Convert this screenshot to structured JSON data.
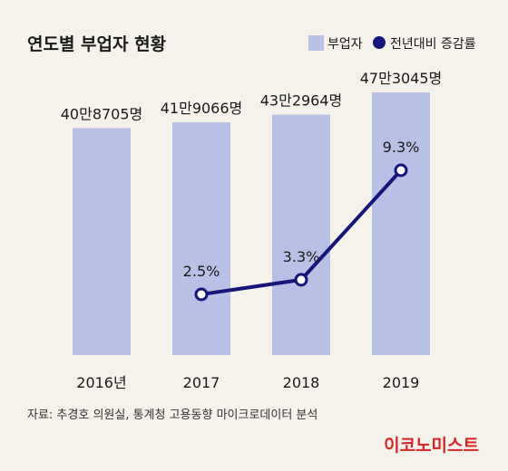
{
  "title": "연도별 부업자 현황",
  "legend": [
    {
      "label": "부업자",
      "type": "bar"
    },
    {
      "label": "전년대비 증감률",
      "type": "line"
    }
  ],
  "colors": {
    "bar": "#b8c0e6",
    "line": "#16167a",
    "marker_fill": "#ffffff",
    "brand": "#d8242a",
    "background": "#f4f2ea"
  },
  "chart_data": [
    {
      "type": "bar",
      "name": "부업자",
      "categories": [
        "2016년",
        "2017",
        "2018",
        "2019"
      ],
      "values": [
        408705,
        419066,
        432964,
        473045
      ],
      "data_labels": [
        "40만8705명",
        "41만9066명",
        "43만2964명",
        "47만3045명"
      ]
    },
    {
      "type": "line",
      "name": "전년대비 증감률",
      "categories": [
        "2017",
        "2018",
        "2019"
      ],
      "values": [
        2.5,
        3.3,
        9.3
      ],
      "data_labels": [
        "2.5%",
        "3.3%",
        "9.3%"
      ]
    }
  ],
  "source": "자료: 추경호 의원실, 통계청 고용동향 마이크로데이터 분석",
  "brand": "이코노미스트"
}
